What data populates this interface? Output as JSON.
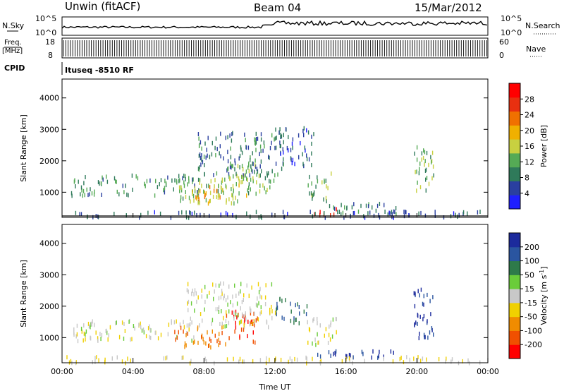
{
  "header": {
    "station": "Unwin (fitACF)",
    "beam": "Beam 04",
    "date": "15/Mar/2012"
  },
  "panels": {
    "nsky_label": "N.Sky",
    "nsky_ticks": [
      "10^5",
      "10^0"
    ],
    "nsearch_label": "N.Search",
    "nsearch_ticks": [
      "10^5",
      "10^0"
    ],
    "freq_label_1": "Freq.",
    "freq_label_2": "[MHz]",
    "freq_ticks": [
      "18",
      "8"
    ],
    "nave_label": "Nave",
    "nave_ticks": [
      "60",
      "0"
    ],
    "cpid_label": "CPID",
    "cpid_value": "Ituseq -8510 RF"
  },
  "colors": {
    "power_scale": [
      "#1f1fff",
      "#2a3fa0",
      "#2f7a5a",
      "#55aa55",
      "#c8d040",
      "#f0b000",
      "#f07000",
      "#e83010",
      "#ff0000"
    ],
    "velocity_scale": [
      "#1c2a9c",
      "#2a55a0",
      "#2e7a4a",
      "#6acc3a",
      "#c8c8c8",
      "#f0d000",
      "#f08c00",
      "#f05000",
      "#ff0000"
    ]
  },
  "chart_data": [
    {
      "type": "heatmap",
      "name_hint": "power",
      "ylabel": "Slant Range [km]",
      "yticks": [
        "1000",
        "2000",
        "3000",
        "4000"
      ],
      "ylim": [
        200,
        4600
      ],
      "xlim": [
        0,
        24
      ],
      "colorbar_label": "Power [dB]",
      "colorbar_ticks": [
        "4",
        "8",
        "12",
        "16",
        "20",
        "24",
        "28"
      ],
      "colorbar_range": [
        0,
        32
      ],
      "regions": [
        {
          "x0": 0.5,
          "x1": 8.0,
          "y0": 950,
          "y1": 1600,
          "value": 10
        },
        {
          "x0": 6.5,
          "x1": 10.5,
          "y0": 700,
          "y1": 1600,
          "value": 14
        },
        {
          "x0": 7.2,
          "x1": 9.2,
          "y0": 700,
          "y1": 1300,
          "value": 20
        },
        {
          "x0": 7.5,
          "x1": 12.5,
          "y0": 1600,
          "y1": 3000,
          "value": 8
        },
        {
          "x0": 9.0,
          "x1": 12.0,
          "y0": 1000,
          "y1": 2000,
          "value": 12
        },
        {
          "x0": 12.0,
          "x1": 14.2,
          "y0": 1900,
          "y1": 3100,
          "value": 6
        },
        {
          "x0": 13.8,
          "x1": 15.2,
          "y0": 750,
          "y1": 1700,
          "value": 12
        },
        {
          "x0": 14.0,
          "x1": 15.5,
          "y0": 300,
          "y1": 550,
          "value": 28
        },
        {
          "x0": 15.0,
          "x1": 19.5,
          "y0": 300,
          "y1": 700,
          "value": 8
        },
        {
          "x0": 19.8,
          "x1": 21.0,
          "y0": 1000,
          "y1": 2500,
          "value": 12
        },
        {
          "x0": 0.2,
          "x1": 24.0,
          "y0": 250,
          "y1": 450,
          "value": 6
        }
      ]
    },
    {
      "type": "heatmap",
      "name_hint": "velocity",
      "ylabel": "Slant Range [km]",
      "yticks": [
        "1000",
        "2000",
        "3000",
        "4000"
      ],
      "ylim": [
        200,
        4600
      ],
      "xlim": [
        0,
        24
      ],
      "xlabel": "Time UT",
      "xticks": [
        "00:00",
        "04:00",
        "08:00",
        "12:00",
        "16:00",
        "20:00",
        "00:00"
      ],
      "colorbar_label": "Velocity [m s",
      "colorbar_label_sup": "-1",
      "colorbar_label_end": "]",
      "colorbar_ticks": [
        "-200",
        "-100",
        "-50",
        "-15",
        "15",
        "50",
        "100",
        "200"
      ],
      "regions": [
        {
          "x0": 0.5,
          "x1": 7.5,
          "y0": 950,
          "y1": 1600,
          "value": 0
        },
        {
          "x0": 6.3,
          "x1": 9.2,
          "y0": 700,
          "y1": 1400,
          "value": -100
        },
        {
          "x0": 9.2,
          "x1": 11.0,
          "y0": 900,
          "y1": 1900,
          "value": -200
        },
        {
          "x0": 7.0,
          "x1": 12.0,
          "y0": 1400,
          "y1": 2800,
          "value": 0
        },
        {
          "x0": 12.0,
          "x1": 13.8,
          "y0": 1500,
          "y1": 2300,
          "value": 100
        },
        {
          "x0": 13.8,
          "x1": 15.5,
          "y0": 800,
          "y1": 1700,
          "value": 0
        },
        {
          "x0": 14.0,
          "x1": 19.0,
          "y0": 400,
          "y1": 650,
          "value": 200
        },
        {
          "x0": 19.8,
          "x1": 21.0,
          "y0": 1000,
          "y1": 2600,
          "value": 200
        },
        {
          "x0": 0.2,
          "x1": 24.0,
          "y0": 250,
          "y1": 450,
          "value": -15
        }
      ]
    }
  ]
}
